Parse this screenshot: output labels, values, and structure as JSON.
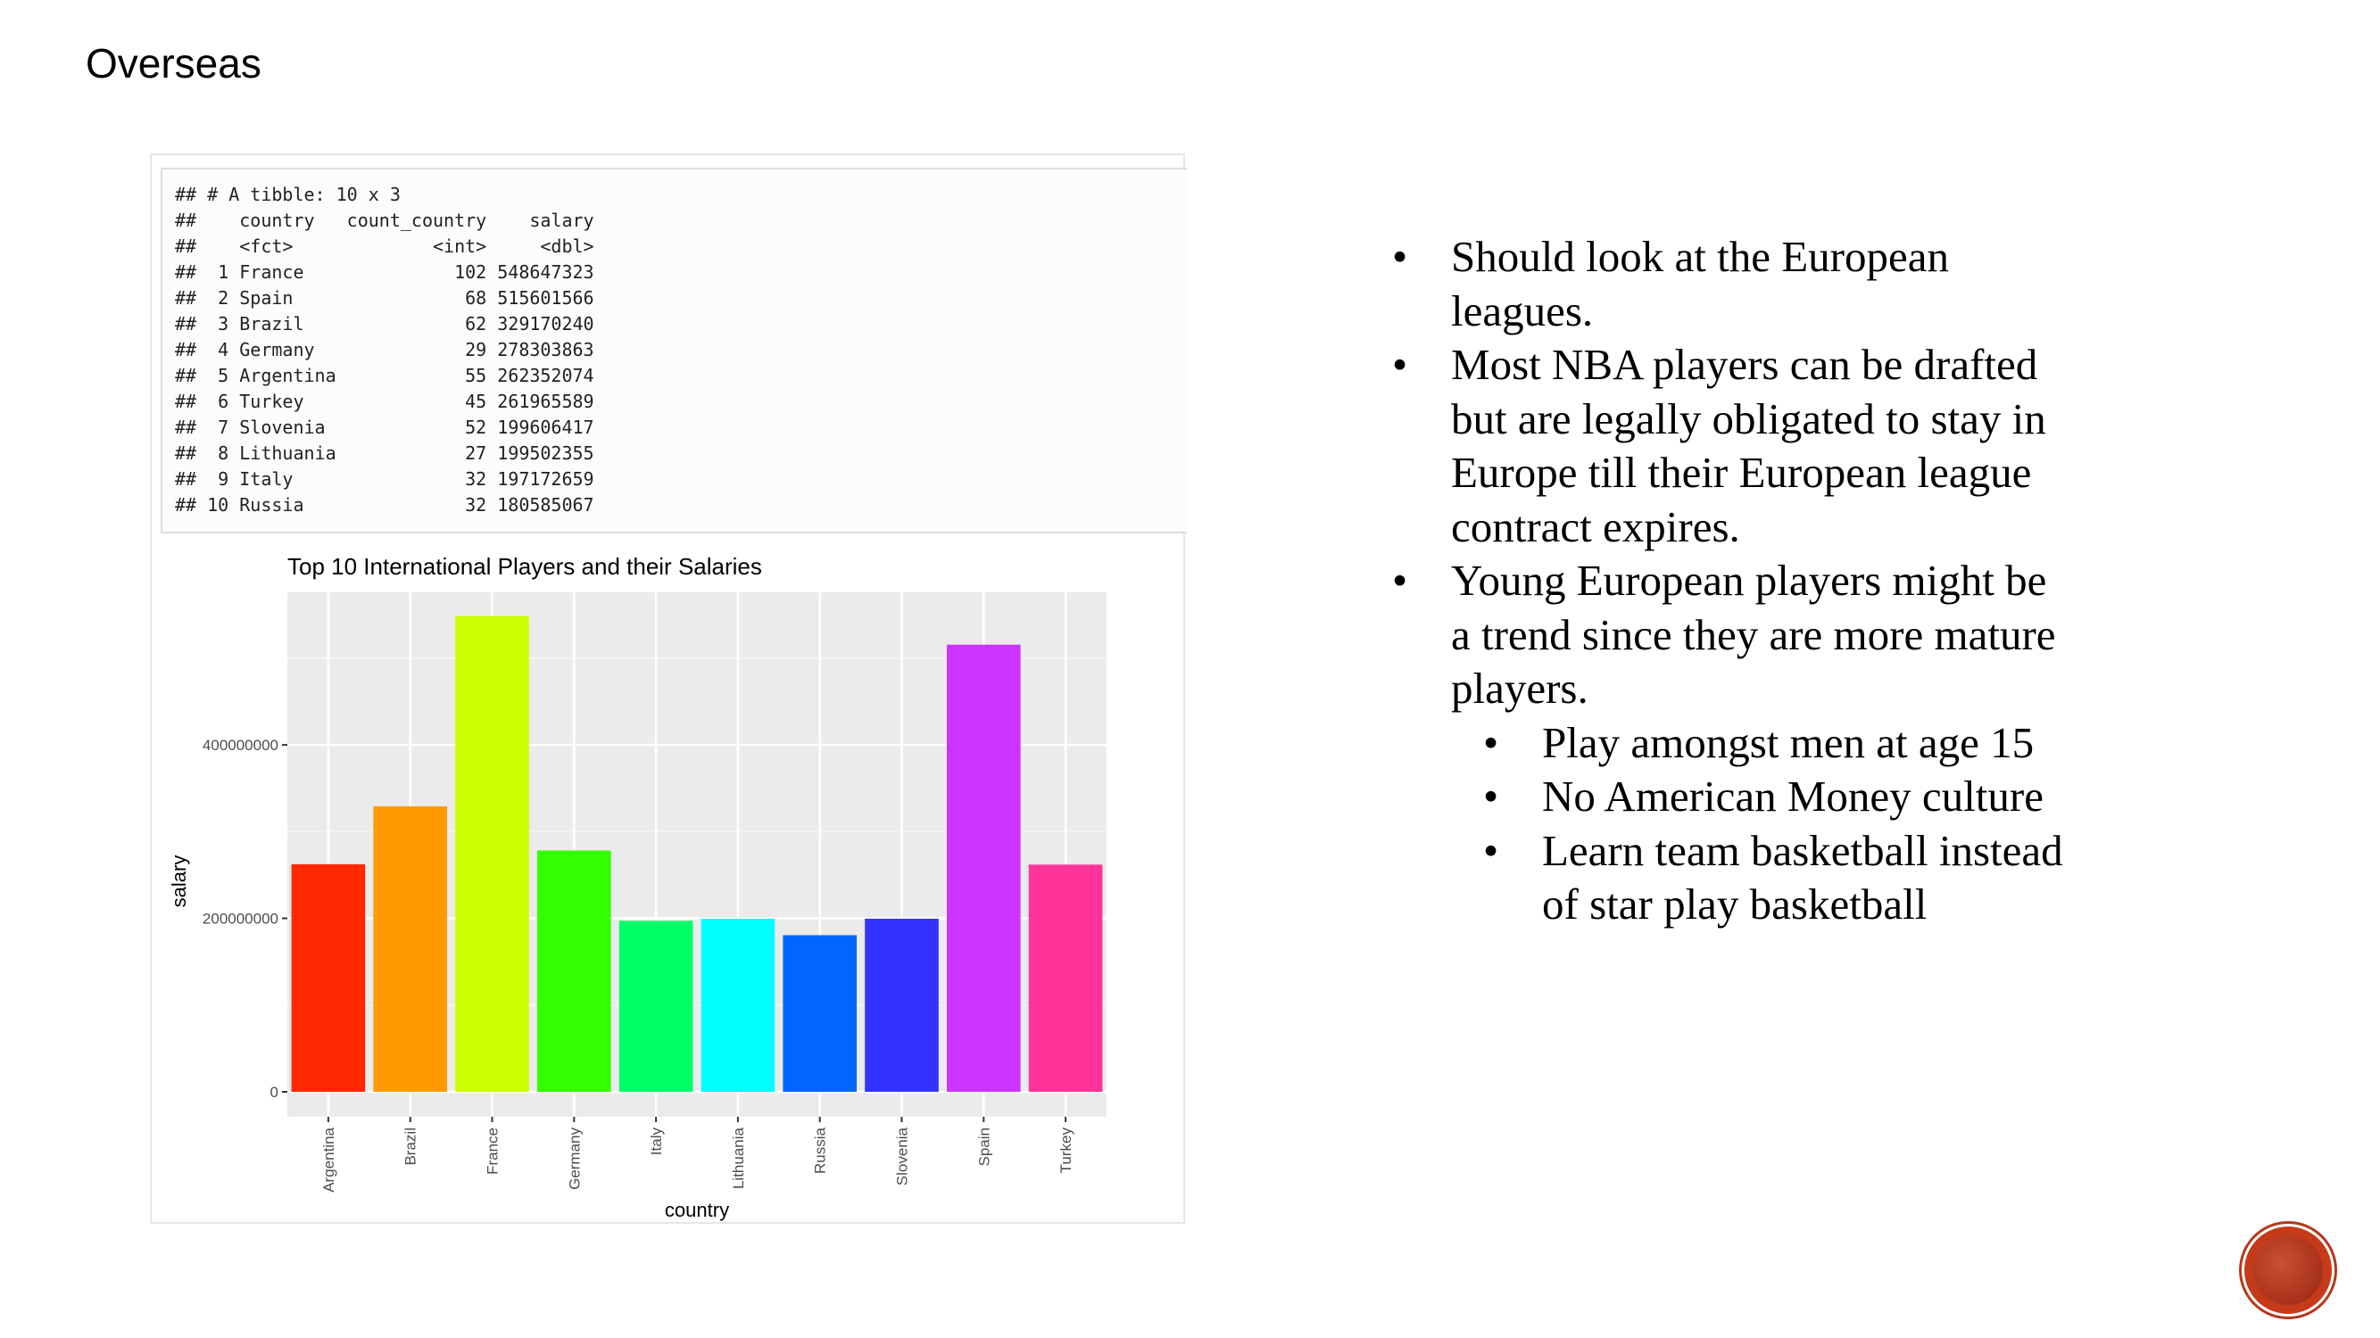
{
  "slide": {
    "title": "Overseas"
  },
  "console": {
    "lines": [
      "## # A tibble: 10 x 3",
      "##    country   count_country    salary",
      "##    <fct>             <int>     <dbl>",
      "##  1 France              102 548647323",
      "##  2 Spain                68 515601566",
      "##  3 Brazil               62 329170240",
      "##  4 Germany              29 278303863",
      "##  5 Argentina            55 262352074",
      "##  6 Turkey               45 261965589",
      "##  7 Slovenia             52 199606417",
      "##  8 Lithuania            27 199502355",
      "##  9 Italy                32 197172659",
      "## 10 Russia               32 180585067"
    ]
  },
  "chart_data": {
    "type": "bar",
    "title": "Top 10 International Players and their Salaries",
    "xlabel": "country",
    "ylabel": "salary",
    "categories": [
      "Argentina",
      "Brazil",
      "France",
      "Germany",
      "Italy",
      "Lithuania",
      "Russia",
      "Slovenia",
      "Spain",
      "Turkey"
    ],
    "values": [
      262352074,
      329170240,
      548647323,
      278303863,
      197172659,
      199502355,
      180585067,
      199606417,
      515601566,
      261965589
    ],
    "colors": [
      "#ff2800",
      "#ff9a00",
      "#ccff00",
      "#33ff00",
      "#00ff66",
      "#00ffff",
      "#0066ff",
      "#3333ff",
      "#cc33ff",
      "#ff3399"
    ],
    "yticks": [
      0,
      200000000,
      400000000
    ],
    "ytick_labels": [
      "0",
      "200000000",
      "400000000"
    ],
    "ylim": [
      0,
      576000000
    ],
    "grid": true,
    "legend": "none"
  },
  "bullets": {
    "items": [
      "Should look at the European leagues.",
      "Most NBA players can be drafted but are legally obligated to stay in Europe till their European league contract expires.",
      "Young European players might be a trend since they are more mature players."
    ],
    "subitems": [
      "Play amongst men at age 15",
      "No American Money culture",
      "Learn team basketball instead of star play basketball"
    ]
  },
  "seal": {
    "icon": "red-circle-seal-icon"
  }
}
